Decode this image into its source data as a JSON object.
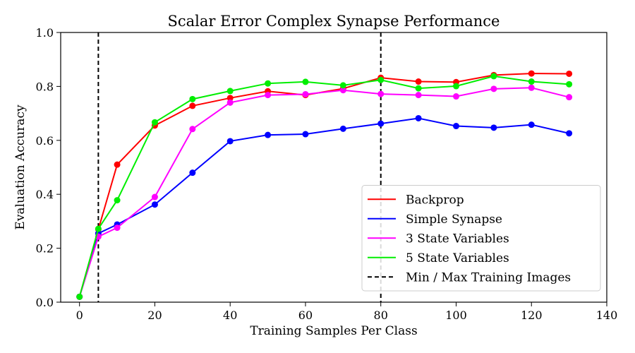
{
  "chart_data": {
    "type": "line",
    "title": "Scalar Error Complex Synapse Performance",
    "xlabel": "Training Samples Per Class",
    "ylabel": "Evaluation Accuracy",
    "xlim": [
      -5,
      140
    ],
    "ylim": [
      0,
      1.0
    ],
    "xticks": [
      0,
      20,
      40,
      60,
      80,
      100,
      120,
      140
    ],
    "yticks": [
      0.0,
      0.2,
      0.4,
      0.6,
      0.8,
      1.0
    ],
    "ytick_labels": [
      "0.0",
      "0.2",
      "0.4",
      "0.6",
      "0.8",
      "1.0"
    ],
    "grid": false,
    "legend_position": "lower-right",
    "x": [
      0,
      5,
      10,
      20,
      30,
      40,
      50,
      60,
      70,
      80,
      90,
      100,
      110,
      120,
      130
    ],
    "series": [
      {
        "name": "Backprop",
        "color": "#ff0000",
        "values": [
          0.02,
          0.27,
          0.51,
          0.655,
          0.728,
          0.757,
          0.782,
          0.768,
          0.792,
          0.832,
          0.818,
          0.816,
          0.842,
          0.848,
          0.847
        ]
      },
      {
        "name": "Simple Synapse",
        "color": "#0000ff",
        "values": [
          0.02,
          0.255,
          0.288,
          0.362,
          0.48,
          0.597,
          0.62,
          0.623,
          0.643,
          0.662,
          0.682,
          0.653,
          0.647,
          0.658,
          0.626
        ]
      },
      {
        "name": "3 State Variables",
        "color": "#ff00ff",
        "values": [
          0.02,
          0.243,
          0.276,
          0.39,
          0.642,
          0.74,
          0.768,
          0.771,
          0.786,
          0.772,
          0.768,
          0.763,
          0.791,
          0.795,
          0.76
        ]
      },
      {
        "name": "5 State Variables",
        "color": "#00ee00",
        "values": [
          0.02,
          0.272,
          0.378,
          0.667,
          0.753,
          0.783,
          0.811,
          0.817,
          0.804,
          0.824,
          0.793,
          0.801,
          0.838,
          0.818,
          0.808
        ]
      }
    ],
    "vlines": [
      {
        "name": "Min / Max Training Images",
        "color": "#000000",
        "style": "dashed",
        "x": [
          5,
          80
        ]
      }
    ]
  }
}
